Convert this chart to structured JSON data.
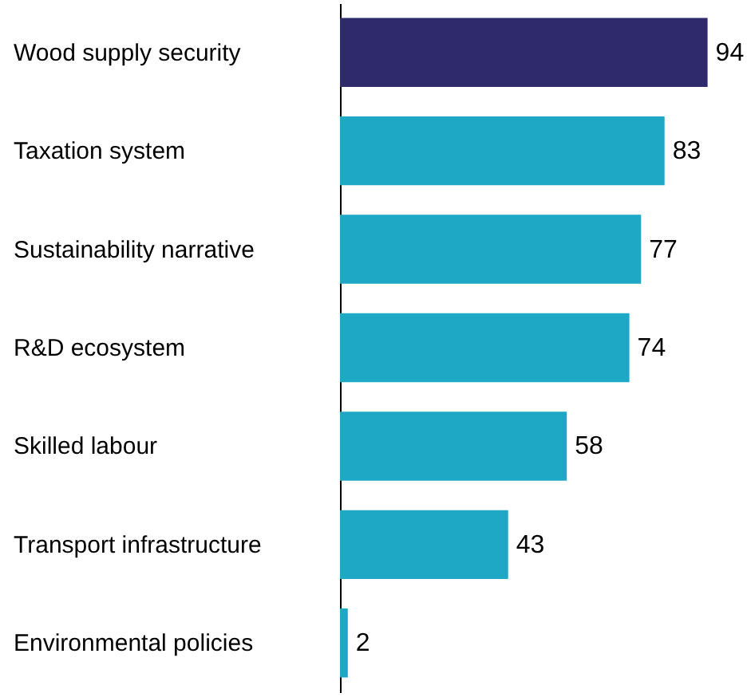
{
  "chart_data": {
    "type": "bar",
    "orientation": "horizontal",
    "categories": [
      "Wood supply security",
      "Taxation system",
      "Sustainability narrative",
      "R&D ecosystem",
      "Skilled labour",
      "Transport infrastructure",
      "Environmental policies"
    ],
    "values": [
      94,
      83,
      77,
      74,
      58,
      43,
      2
    ],
    "colors": [
      "#2e2a6b",
      "#1fa8c6",
      "#1fa8c6",
      "#1fa8c6",
      "#1fa8c6",
      "#1fa8c6",
      "#1fa8c6"
    ],
    "data_labels": true
  }
}
